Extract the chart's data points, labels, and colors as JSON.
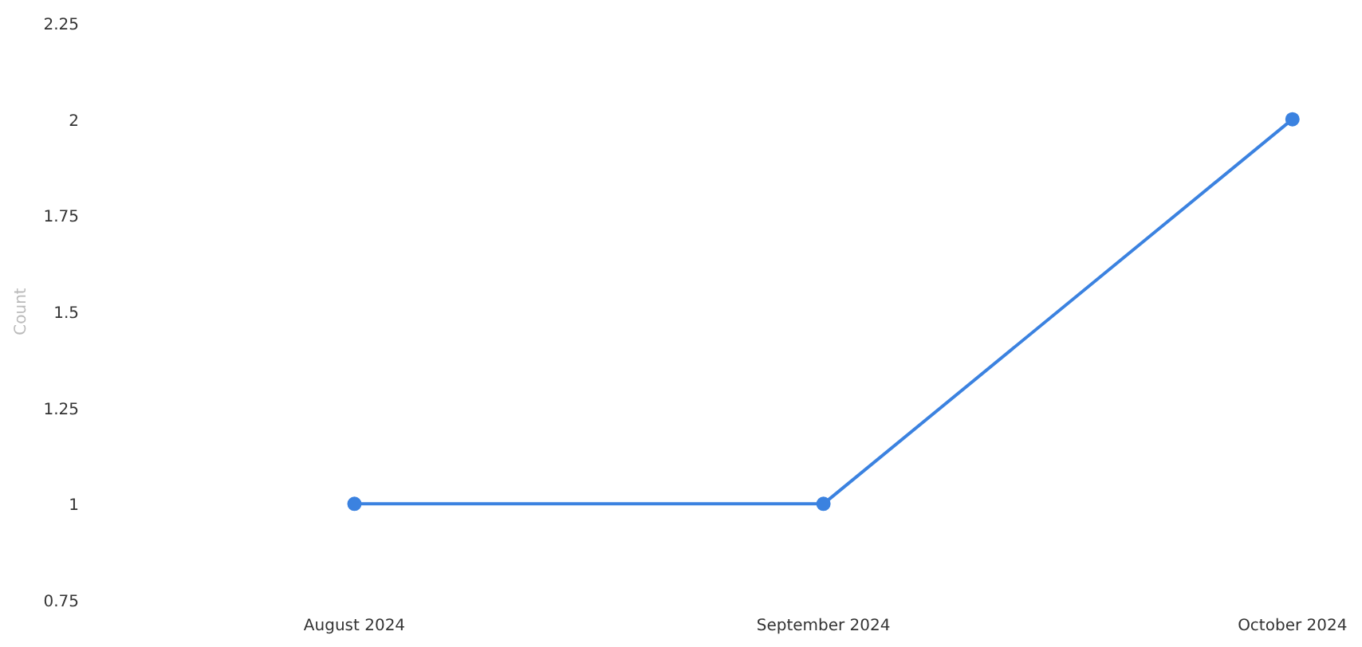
{
  "chart_data": {
    "type": "line",
    "ylabel": "Count",
    "categories": [
      "August 2024",
      "September 2024",
      "October 2024"
    ],
    "series": [
      {
        "color": "#3b82e0",
        "values": [
          1,
          1,
          2
        ]
      }
    ],
    "ylim": [
      0.75,
      2.25
    ],
    "yticks": [
      0.75,
      1,
      1.25,
      1.5,
      1.75,
      2,
      2.25
    ],
    "grid": false,
    "marker": "circle",
    "line_style": "solid"
  }
}
